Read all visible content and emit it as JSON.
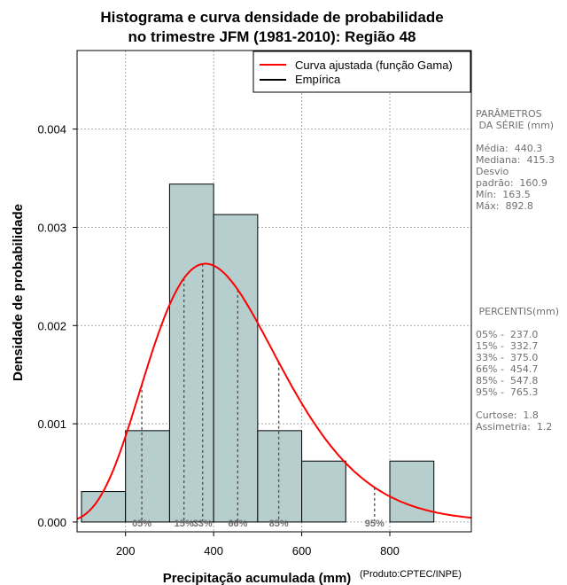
{
  "chart_data": {
    "type": "histogram",
    "title_line1": "Histograma e curva densidade de probabilidade",
    "title_line2": "no trimestre JFM (1981-2010): Região 48",
    "xlabel": "Precipitação acumulada (mm)",
    "ylabel": "Densidade de probabilidade",
    "credit": "(Produto:CPTEC/INPE)",
    "xlim": [
      90,
      985
    ],
    "ylim": [
      -0.0001,
      0.0048
    ],
    "x_ticks": [
      200,
      400,
      600,
      800
    ],
    "x_tick_labels": [
      "200",
      "400",
      "600",
      "800"
    ],
    "y_ticks": [
      0,
      0.001,
      0.002,
      0.003,
      0.004
    ],
    "y_tick_labels": [
      "0.000",
      "0.001",
      "0.002",
      "0.003",
      "0.004"
    ],
    "bins": [
      {
        "from": 100,
        "to": 200,
        "density": 0.00031
      },
      {
        "from": 200,
        "to": 300,
        "density": 0.00093
      },
      {
        "from": 300,
        "to": 400,
        "density": 0.00344
      },
      {
        "from": 400,
        "to": 500,
        "density": 0.00313
      },
      {
        "from": 500,
        "to": 600,
        "density": 0.00093
      },
      {
        "from": 600,
        "to": 700,
        "density": 0.00062
      },
      {
        "from": 800,
        "to": 900,
        "density": 0.00062
      }
    ],
    "gamma_fit": {
      "mean": 440.3,
      "sd": 160.9
    },
    "percentile_markers": [
      {
        "label": "05%",
        "value": 237.0
      },
      {
        "label": "15%",
        "value": 332.7
      },
      {
        "label": "33%",
        "value": 375.0
      },
      {
        "label": "66%",
        "value": 454.7
      },
      {
        "label": "85%",
        "value": 547.8
      },
      {
        "label": "95%",
        "value": 765.3
      }
    ],
    "legend": [
      {
        "label": "Curva ajustada (função Gama)",
        "color": "#ff0000"
      },
      {
        "label": "Empírica",
        "color": "#000000"
      }
    ],
    "colors": {
      "bar_fill": "#b6cece",
      "curve": "#ff0000",
      "grid": "#aaaaaa",
      "pct_line": "#555555"
    }
  },
  "side_panel": {
    "params_title_1": "PARÂMETROS",
    "params_title_2": " DA SÉRIE (mm)",
    "media": "Média:  440.3",
    "mediana": "Mediana:  415.3",
    "desvio_1": "Desvio",
    "desvio_2": "padrão:  160.9",
    "min": "Mín:  163.5",
    "max": "Máx:  892.8",
    "percentis_title": " PERCENTIS(mm)",
    "p05": "05% -  237.0",
    "p15": "15% -  332.7",
    "p33": "33% -  375.0",
    "p66": "66% -  454.7",
    "p85": "85% -  547.8",
    "p95": "95% -  765.3",
    "curtose": "Curtose:  1.8",
    "assimetria": "Assimetria:  1.2"
  }
}
